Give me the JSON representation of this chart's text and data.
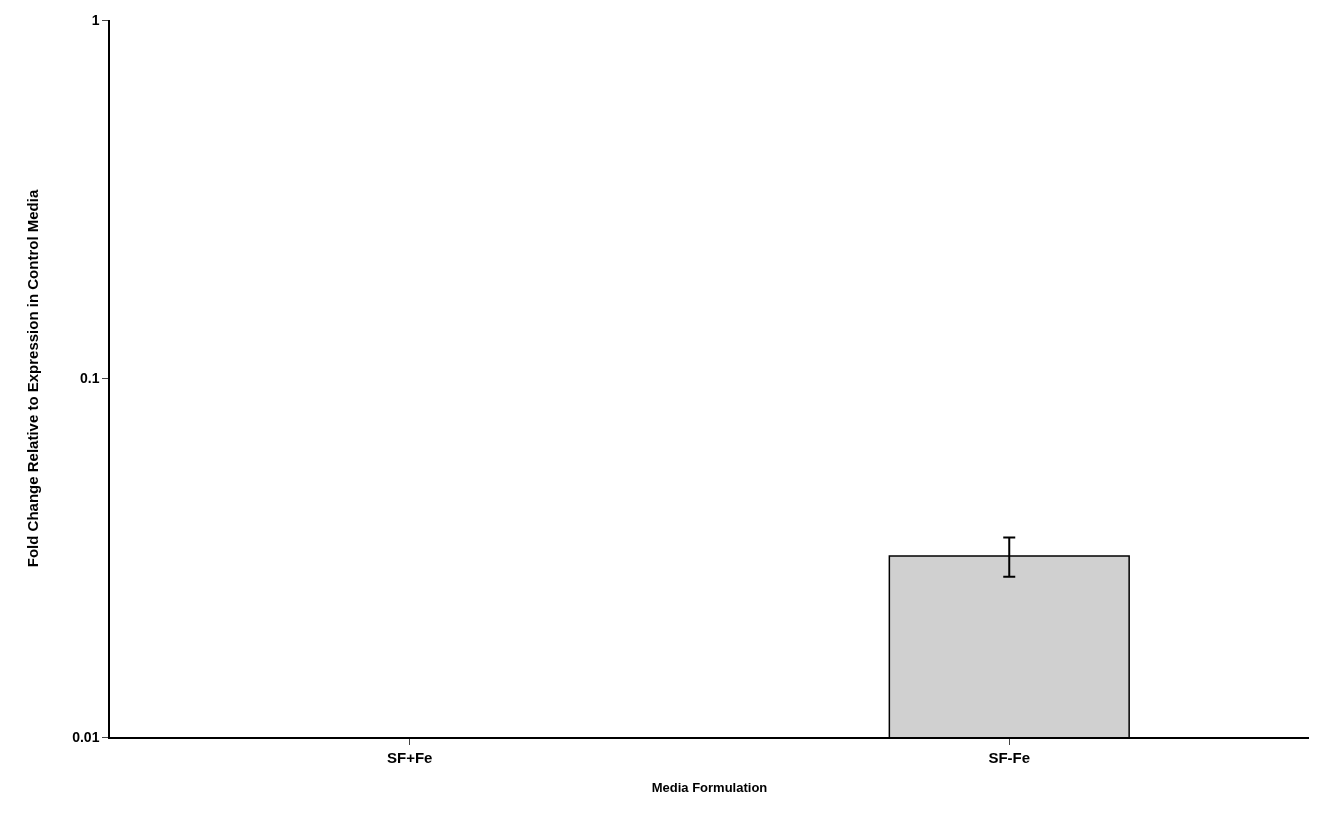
{
  "chart_data": {
    "type": "bar",
    "xlabel": "Media Formulation",
    "ylabel": "Fold Change Relative to Expression in Control Media",
    "categories": [
      "SF+Fe",
      "SF-Fe"
    ],
    "values": [
      null,
      0.032
    ],
    "errors": [
      null,
      [
        0.028,
        0.036
      ]
    ],
    "color": "#d0d0d0",
    "log": true,
    "ylim": [
      0.01,
      1
    ],
    "yticks": [
      0.01,
      0.1,
      1
    ],
    "grid": false
  }
}
